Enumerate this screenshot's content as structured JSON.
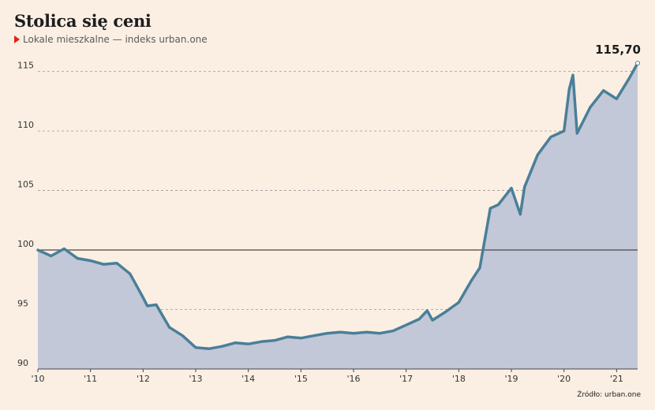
{
  "header": {
    "title": "Stolica się ceni",
    "subtitle": "Lokale mieszkalne — indeks urban.one"
  },
  "footer": {
    "source": "Źródło: urban.one"
  },
  "chart_data": {
    "type": "area",
    "title": "Stolica się ceni",
    "subtitle": "Lokale mieszkalne — indeks urban.one",
    "xlabel": "",
    "ylabel": "",
    "grid": true,
    "baseline": 100,
    "ylim": [
      90,
      116.5
    ],
    "y_ticks": [
      90,
      95,
      100,
      105,
      110,
      115
    ],
    "x_tick_labels": [
      "'10",
      "'11",
      "'12",
      "'13",
      "'14",
      "'15",
      "'16",
      "'17",
      "'18",
      "'19",
      "'20",
      "'21"
    ],
    "x_tick_years": [
      2010,
      2011,
      2012,
      2013,
      2014,
      2015,
      2016,
      2017,
      2018,
      2019,
      2020,
      2021
    ],
    "last_value_label": "115,70",
    "colors": {
      "line": "#4a7f99",
      "area": "#c2c8d7",
      "baseline": "#555555",
      "grid": "#9a9a9a",
      "background": "#fbefe3"
    },
    "series": [
      {
        "x": [
          2010.0,
          2010.25,
          2010.5,
          2010.75,
          2011.0,
          2011.25,
          2011.5,
          2011.75,
          2012.0,
          2012.08,
          2012.25,
          2012.5,
          2012.75,
          2013.0,
          2013.25,
          2013.5,
          2013.75,
          2014.0,
          2014.25,
          2014.5,
          2014.75,
          2015.0,
          2015.25,
          2015.5,
          2015.75,
          2016.0,
          2016.25,
          2016.5,
          2016.75,
          2017.0,
          2017.25,
          2017.4,
          2017.5,
          2017.75,
          2018.0,
          2018.25,
          2018.4,
          2018.6,
          2018.75,
          2019.0,
          2019.17,
          2019.25,
          2019.5,
          2019.75,
          2020.0,
          2020.1,
          2020.17,
          2020.25,
          2020.5,
          2020.75,
          2021.0,
          2021.25,
          2021.4
        ],
        "values": [
          100.0,
          99.5,
          100.1,
          99.3,
          99.1,
          98.8,
          98.9,
          98.0,
          96.0,
          95.3,
          95.4,
          93.5,
          92.8,
          91.8,
          91.7,
          91.9,
          92.2,
          92.1,
          92.3,
          92.4,
          92.7,
          92.6,
          92.8,
          93.0,
          93.1,
          93.0,
          93.1,
          93.0,
          93.2,
          93.7,
          94.2,
          94.9,
          94.1,
          94.8,
          95.6,
          97.5,
          98.5,
          103.5,
          103.8,
          105.2,
          103.0,
          105.3,
          108.0,
          109.5,
          110.0,
          113.5,
          114.7,
          109.8,
          112.0,
          113.4,
          112.7,
          114.5,
          115.7
        ]
      }
    ]
  }
}
